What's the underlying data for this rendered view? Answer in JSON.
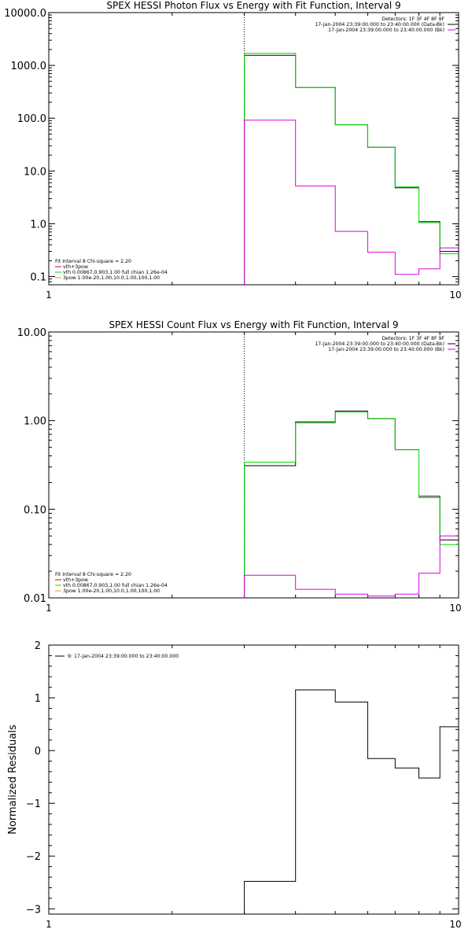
{
  "chart_data": [
    {
      "type": "line",
      "title": "SPEX HESSI Photon Flux vs Energy with Fit Function, Interval 9",
      "xlabel": "",
      "ylabel": "",
      "x_scale": "log",
      "y_scale": "log",
      "xlim": [
        1,
        10
      ],
      "ylim": [
        0.07,
        10000
      ],
      "x_tick_labels": [
        "1",
        "10"
      ],
      "y_tick_labels": [
        "0.1",
        "1.0",
        "10.0",
        "100.0",
        "1000.0",
        "10000.0"
      ],
      "energy_edges": [
        3,
        4,
        5,
        6,
        7,
        8,
        9,
        10
      ],
      "vline_x": 3,
      "legend_top": [
        "Detectors: 1F 3F 4F 8F 9F",
        "17-Jan-2004 23:39:00.000 to 23:40:00.000 (Data-Bk)",
        "17-Jan-2004 23:39:00.000 to 23:40:00.000 (Bk)"
      ],
      "legend_bottom": [
        "Fit Interval 8   Chi-square = 2.20",
        "vth+3pow",
        "vth 0.00867,0.903,1.00   full chian 1.26e-04",
        "3pow 1.00e-20,1.00,10.0,1.00,100,1.00"
      ],
      "series": [
        {
          "values": [
            1550,
            380,
            75,
            28,
            4.8,
            1.1,
            0.3
          ],
          "color": "#000000"
        },
        {
          "values": [
            1700,
            380,
            75,
            28,
            5.0,
            1.05,
            0.27
          ],
          "color": "#00dd00"
        },
        {
          "values": [
            92,
            5.2,
            0.72,
            0.29,
            0.11,
            0.14,
            0.35
          ],
          "color": "#dd00dd"
        }
      ]
    },
    {
      "type": "line",
      "title": "SPEX HESSI Count Flux vs Energy with Fit Function, Interval 9",
      "xlabel": "",
      "ylabel": "",
      "x_scale": "log",
      "y_scale": "log",
      "xlim": [
        1,
        10
      ],
      "ylim": [
        0.01,
        10
      ],
      "x_tick_labels": [
        "1",
        "10"
      ],
      "y_tick_labels": [
        "0.01",
        "0.10",
        "1.00",
        "10.00"
      ],
      "energy_edges": [
        3,
        4,
        5,
        6,
        7,
        8,
        9,
        10
      ],
      "vline_x": 3,
      "legend_top": [
        "Detectors: 1F 3F 4F 8F 9F",
        "17-Jan-2004 23:39:00.000 to 23:40:00.000 (Data-Bk)",
        "17-Jan-2004 23:39:00.000 to 23:40:00.000 (Bk)"
      ],
      "legend_bottom": [
        "Fit Interval 8   Chi-square = 2.20",
        "vth+3pow",
        "vth 0.00867,0.903,1.00   full chian 1.26e-04",
        "3pow 1.00e-20,1.00,10.0,1.00,100,1.00"
      ],
      "series": [
        {
          "values": [
            0.31,
            0.97,
            1.28,
            1.05,
            0.47,
            0.14,
            0.045
          ],
          "color": "#000000"
        },
        {
          "values": [
            0.34,
            0.94,
            1.25,
            1.05,
            0.47,
            0.135,
            0.04
          ],
          "color": "#00dd00"
        },
        {
          "values": [
            0.018,
            0.0125,
            0.011,
            0.0105,
            0.011,
            0.019,
            0.05
          ],
          "color": "#dd00dd"
        }
      ]
    },
    {
      "type": "line",
      "title": "",
      "xlabel": "",
      "ylabel": "Normalized Residuals",
      "x_scale": "log",
      "y_scale": "linear",
      "xlim": [
        1,
        10
      ],
      "ylim": [
        -3.1,
        2
      ],
      "x_tick_labels": [
        "1",
        "10"
      ],
      "y_tick_values": [
        2,
        1,
        0,
        -1,
        -2,
        -3
      ],
      "y_tick_labels": [
        "2",
        "1",
        "0",
        "−1",
        "−2",
        "−3"
      ],
      "energy_edges": [
        3,
        4,
        5,
        6,
        7,
        8,
        9,
        10
      ],
      "legend": [
        "9: 17-Jan-2004 23:39:00.000 to 23:40:00.000"
      ],
      "series": [
        {
          "values": [
            -2.48,
            1.15,
            0.92,
            -0.15,
            -0.33,
            -0.52,
            0.45
          ],
          "color": "#000000"
        }
      ]
    }
  ]
}
